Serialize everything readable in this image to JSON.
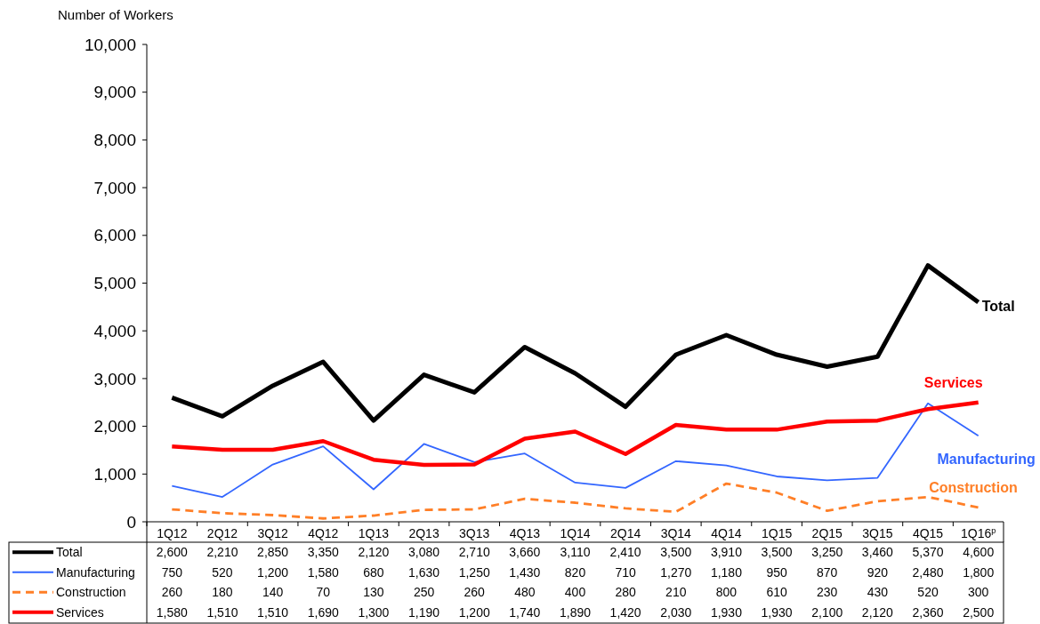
{
  "chart_data": {
    "type": "line",
    "ylabel": "Number of Workers",
    "categories": [
      "1Q12",
      "2Q12",
      "3Q12",
      "4Q12",
      "1Q13",
      "2Q13",
      "3Q13",
      "4Q13",
      "1Q14",
      "2Q14",
      "3Q14",
      "4Q14",
      "1Q15",
      "2Q15",
      "3Q15",
      "4Q15",
      "1Q16$^{p}$"
    ],
    "series": [
      {
        "name": "Total",
        "color": "#000000",
        "line_style": "solid",
        "values": [
          2600,
          2210,
          2850,
          3350,
          2120,
          3080,
          2710,
          3660,
          3110,
          2410,
          3500,
          3910,
          3500,
          3250,
          3460,
          5370,
          4600
        ],
        "value_labels": [
          "2,600",
          "2,210",
          "2,850",
          "3,350",
          "2,120",
          "3,080",
          "2,710",
          "3,660",
          "3,110",
          "2,410",
          "3,500",
          "3,910",
          "3,500",
          "3,250",
          "3,460",
          "5,370",
          "4,600"
        ]
      },
      {
        "name": "Manufacturing",
        "color": "#3366ff",
        "line_style": "solid",
        "values": [
          750,
          520,
          1200,
          1580,
          680,
          1630,
          1250,
          1430,
          820,
          710,
          1270,
          1180,
          950,
          870,
          920,
          2480,
          1800
        ],
        "value_labels": [
          "750",
          "520",
          "1,200",
          "1,580",
          "680",
          "1,630",
          "1,250",
          "1,430",
          "820",
          "710",
          "1,270",
          "1,180",
          "950",
          "870",
          "920",
          "2,480",
          "1,800"
        ]
      },
      {
        "name": "Construction",
        "color": "#ff7f27",
        "line_style": "dashed",
        "values": [
          260,
          180,
          140,
          70,
          130,
          250,
          260,
          480,
          400,
          280,
          210,
          800,
          610,
          230,
          430,
          520,
          300
        ],
        "value_labels": [
          "260",
          "180",
          "140",
          "70",
          "130",
          "250",
          "260",
          "480",
          "400",
          "280",
          "210",
          "800",
          "610",
          "230",
          "430",
          "520",
          "300"
        ]
      },
      {
        "name": "Services",
        "color": "#ff0000",
        "line_style": "solid",
        "values": [
          1580,
          1510,
          1510,
          1690,
          1300,
          1190,
          1200,
          1740,
          1890,
          1420,
          2030,
          1930,
          1930,
          2100,
          2120,
          2360,
          2500
        ],
        "value_labels": [
          "1,580",
          "1,510",
          "1,510",
          "1,690",
          "1,300",
          "1,190",
          "1,200",
          "1,740",
          "1,890",
          "1,420",
          "2,030",
          "1,930",
          "1,930",
          "2,100",
          "2,120",
          "2,360",
          "2,500"
        ]
      }
    ],
    "ylim": [
      0,
      10000
    ],
    "yticks": [
      0,
      {
        "value": 1000,
        "label": "1,000"
      },
      {
        "value": 2000,
        "label": "2,000"
      },
      {
        "value": 3000,
        "label": "3,000"
      },
      {
        "value": 4000,
        "label": "4,000"
      },
      {
        "value": 5000,
        "label": "5,000"
      },
      {
        "value": 6000,
        "label": "6,000"
      },
      {
        "value": 7000,
        "label": "7,000"
      },
      {
        "value": 8000,
        "label": "8,000"
      },
      {
        "value": 9000,
        "label": "9,000"
      },
      {
        "value": 10000,
        "label": "10,000"
      }
    ],
    "grid": false,
    "legend": "bottom"
  }
}
